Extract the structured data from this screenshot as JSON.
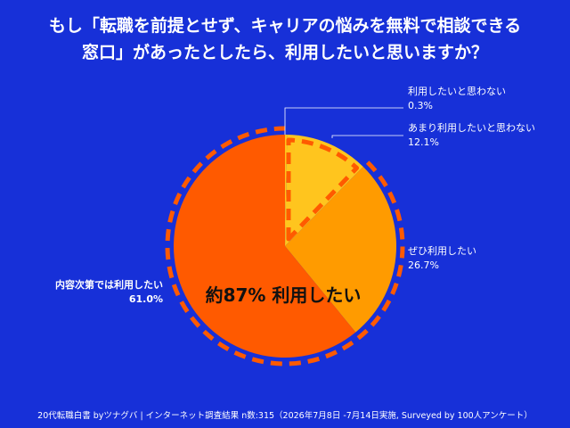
{
  "title": {
    "line1": "もし「転職を前提とせず、キャリアの悩みを無料で相談できる",
    "line2": "窓口」があったとしたら、利用したいと思いますか？"
  },
  "colors": {
    "background": "#1730D8",
    "slices": [
      "#FFC51E",
      "#FFC51E",
      "#FF9B00",
      "#FF5A00"
    ],
    "dashed_outline": "#FF5A00",
    "text": "#FFFFFF"
  },
  "chart_data": {
    "type": "pie",
    "labels": [
      "利用したいと思わない",
      "あまり利用したいと思わない",
      "ぜひ利用したい",
      "内容次第では利用したい"
    ],
    "values": [
      0.3,
      12.1,
      26.7,
      61.0
    ],
    "value_labels": [
      "0.3%",
      "12.1%",
      "26.7%",
      "61.0%"
    ],
    "start": "12 o'clock",
    "direction": "clockwise",
    "annotation": "約87% 利用したい",
    "highlight_groups": [
      [
        0,
        1
      ],
      [
        2,
        3
      ]
    ]
  },
  "footer": "20代転職白書 byツナグバ | インターネット調査結果 n数:315（2026年7月8日 -7月14日実施, Surveyed by 100人アンケート）"
}
